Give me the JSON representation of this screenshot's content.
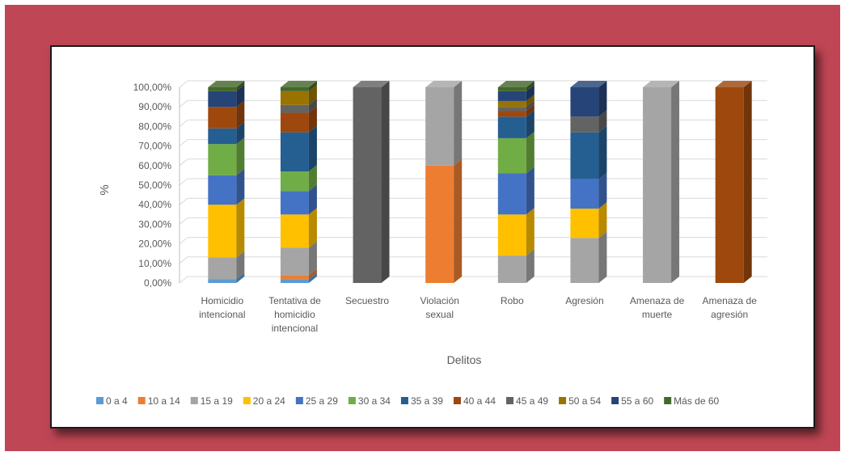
{
  "chart_data": {
    "type": "bar",
    "stacked": true,
    "percent": true,
    "three_d": true,
    "xlabel": "Delitos",
    "ylabel": "%",
    "ylim": [
      0,
      100
    ],
    "yticks": [
      "0,00%",
      "10,00%",
      "20,00%",
      "30,00%",
      "40,00%",
      "50,00%",
      "60,00%",
      "70,00%",
      "80,00%",
      "90,00%",
      "100,00%"
    ],
    "grid": true,
    "legend_position": "bottom",
    "categories": [
      [
        "Homicidio",
        "intencional"
      ],
      [
        "Tentativa de",
        "homicidio",
        "intencional"
      ],
      [
        "Secuestro"
      ],
      [
        "Violación",
        "sexual"
      ],
      [
        "Robo"
      ],
      [
        "Agresión"
      ],
      [
        "Amenaza de",
        "muerte"
      ],
      [
        "Amenaza de",
        "agresión"
      ]
    ],
    "series": [
      {
        "name": "0 a 4",
        "color": "#5b9bd5",
        "values": [
          2,
          2,
          0,
          0,
          0,
          0,
          0,
          0
        ]
      },
      {
        "name": "10 a 14",
        "color": "#ed7d31",
        "values": [
          0,
          2,
          0,
          60,
          0,
          0,
          0,
          0
        ]
      },
      {
        "name": "15 a 19",
        "color": "#a5a5a5",
        "values": [
          11,
          14,
          0,
          40,
          14,
          23,
          100,
          0
        ]
      },
      {
        "name": "20 a 24",
        "color": "#ffc000",
        "values": [
          27,
          17,
          0,
          0,
          21,
          15,
          0,
          0
        ]
      },
      {
        "name": "25 a 29",
        "color": "#4472c4",
        "values": [
          15,
          12,
          0,
          0,
          21,
          15,
          0,
          0
        ]
      },
      {
        "name": "30 a 34",
        "color": "#70ad47",
        "values": [
          16,
          10,
          0,
          0,
          18,
          0,
          0,
          0
        ]
      },
      {
        "name": "35 a 39",
        "color": "#255e91",
        "values": [
          8,
          20,
          0,
          0,
          11,
          24,
          0,
          0
        ]
      },
      {
        "name": "40 a 44",
        "color": "#9e480e",
        "values": [
          11,
          10,
          0,
          0,
          3,
          0,
          0,
          100
        ]
      },
      {
        "name": "45 a 49",
        "color": "#636363",
        "values": [
          0,
          4,
          100,
          0,
          2,
          8,
          0,
          0
        ]
      },
      {
        "name": "50 a 54",
        "color": "#997300",
        "values": [
          0,
          7,
          0,
          0,
          3,
          0,
          0,
          0
        ]
      },
      {
        "name": "55 a 60",
        "color": "#264478",
        "values": [
          8,
          0,
          0,
          0,
          5,
          15,
          0,
          0
        ]
      },
      {
        "name": "Más de 60",
        "color": "#43682b",
        "values": [
          2,
          2,
          0,
          0,
          2,
          0,
          0,
          0
        ]
      }
    ]
  }
}
